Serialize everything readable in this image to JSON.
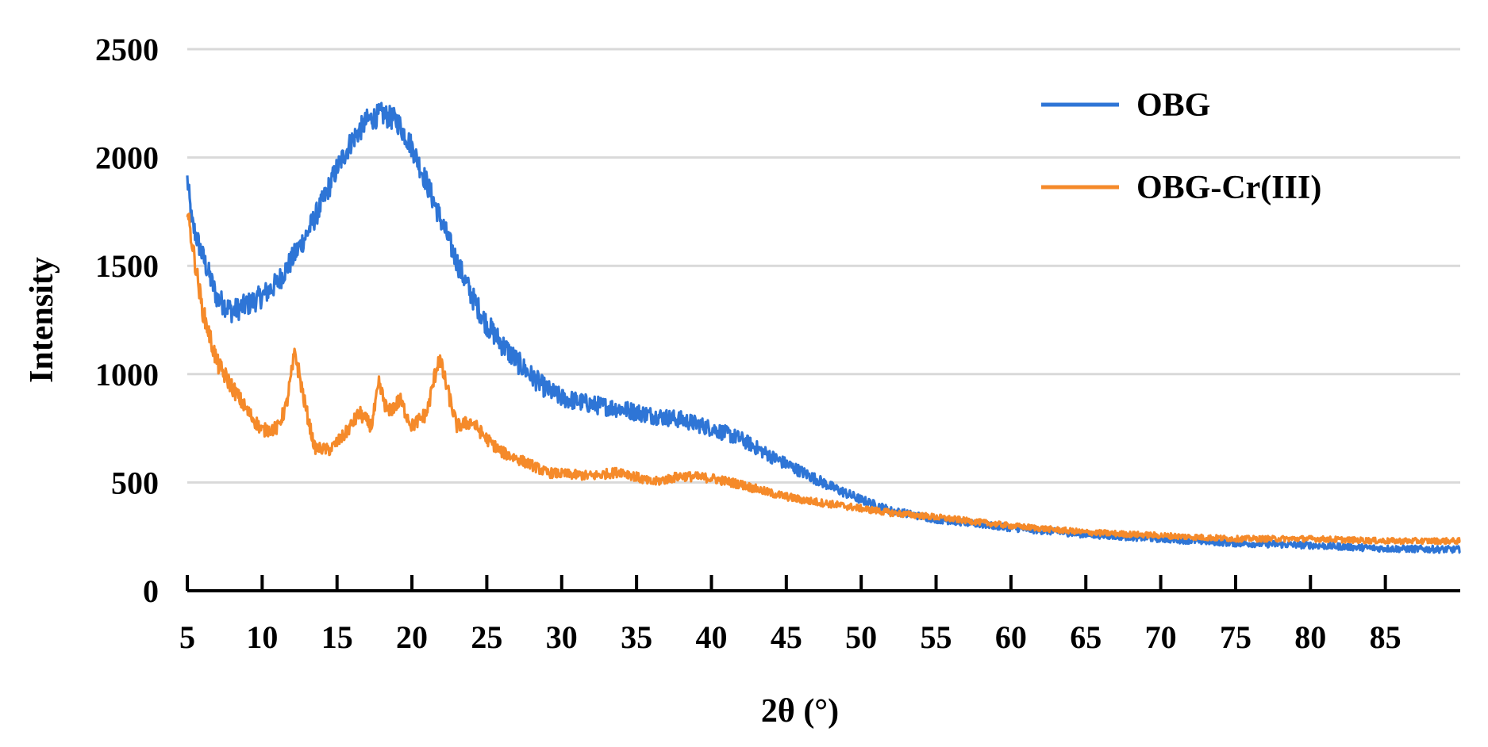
{
  "chart_data": {
    "type": "line",
    "title": "",
    "xlabel": "2θ (°)",
    "ylabel": "Intensity",
    "xlim": [
      5,
      90
    ],
    "ylim": [
      0,
      2500
    ],
    "grid": true,
    "legend_position": "top-right",
    "x_ticks": [
      5,
      10,
      15,
      20,
      25,
      30,
      35,
      40,
      45,
      50,
      55,
      60,
      65,
      70,
      75,
      80,
      85
    ],
    "x_tick_labels": [
      "5",
      "10",
      "15",
      "20",
      "25",
      "30",
      "35",
      "40",
      "45",
      "50",
      "55",
      "60",
      "65",
      "70",
      "75",
      "80",
      "85"
    ],
    "y_ticks": [
      0,
      500,
      1000,
      1500,
      2000,
      2500
    ],
    "y_tick_labels": [
      "0",
      "500",
      "1000",
      "1500",
      "2000",
      "2500"
    ],
    "series": [
      {
        "name": "OBG",
        "color": "#2e75d6",
        "noise": 45,
        "points": [
          [
            5,
            1900
          ],
          [
            5.3,
            1700
          ],
          [
            6,
            1550
          ],
          [
            7,
            1350
          ],
          [
            8,
            1290
          ],
          [
            9,
            1320
          ],
          [
            10,
            1360
          ],
          [
            11,
            1420
          ],
          [
            12,
            1530
          ],
          [
            13,
            1650
          ],
          [
            14,
            1790
          ],
          [
            15,
            1950
          ],
          [
            16,
            2080
          ],
          [
            17,
            2170
          ],
          [
            18,
            2200
          ],
          [
            19,
            2170
          ],
          [
            20,
            2050
          ],
          [
            21,
            1880
          ],
          [
            22,
            1700
          ],
          [
            23,
            1520
          ],
          [
            24,
            1360
          ],
          [
            25,
            1230
          ],
          [
            26,
            1140
          ],
          [
            27,
            1060
          ],
          [
            28,
            990
          ],
          [
            29,
            930
          ],
          [
            30,
            890
          ],
          [
            32,
            860
          ],
          [
            34,
            840
          ],
          [
            36,
            810
          ],
          [
            38,
            790
          ],
          [
            40,
            750
          ],
          [
            42,
            700
          ],
          [
            44,
            620
          ],
          [
            46,
            550
          ],
          [
            48,
            480
          ],
          [
            50,
            420
          ],
          [
            52,
            370
          ],
          [
            55,
            330
          ],
          [
            60,
            290
          ],
          [
            65,
            260
          ],
          [
            70,
            240
          ],
          [
            75,
            220
          ],
          [
            80,
            210
          ],
          [
            85,
            195
          ],
          [
            90,
            190
          ]
        ]
      },
      {
        "name": "OBG-Cr(III)",
        "color": "#f58a2a",
        "noise": 38,
        "points": [
          [
            5,
            1750
          ],
          [
            6,
            1300
          ],
          [
            7,
            1050
          ],
          [
            8,
            940
          ],
          [
            9,
            830
          ],
          [
            10,
            740
          ],
          [
            11,
            750
          ],
          [
            11.6,
            850
          ],
          [
            12.2,
            1100
          ],
          [
            12.8,
            880
          ],
          [
            13.5,
            660
          ],
          [
            14.5,
            650
          ],
          [
            15.5,
            720
          ],
          [
            16.5,
            820
          ],
          [
            17.3,
            760
          ],
          [
            17.8,
            950
          ],
          [
            18.4,
            820
          ],
          [
            19.2,
            880
          ],
          [
            20,
            760
          ],
          [
            21,
            820
          ],
          [
            21.8,
            1080
          ],
          [
            22.4,
            920
          ],
          [
            23,
            760
          ],
          [
            24,
            780
          ],
          [
            25,
            700
          ],
          [
            26,
            640
          ],
          [
            27,
            610
          ],
          [
            28,
            580
          ],
          [
            29,
            545
          ],
          [
            30,
            540
          ],
          [
            32,
            530
          ],
          [
            34,
            550
          ],
          [
            36,
            500
          ],
          [
            38,
            530
          ],
          [
            40,
            520
          ],
          [
            42,
            490
          ],
          [
            44,
            450
          ],
          [
            46,
            420
          ],
          [
            48,
            400
          ],
          [
            50,
            380
          ],
          [
            52,
            360
          ],
          [
            55,
            340
          ],
          [
            60,
            300
          ],
          [
            65,
            270
          ],
          [
            70,
            255
          ],
          [
            75,
            240
          ],
          [
            80,
            240
          ],
          [
            85,
            230
          ],
          [
            90,
            230
          ]
        ]
      }
    ]
  }
}
